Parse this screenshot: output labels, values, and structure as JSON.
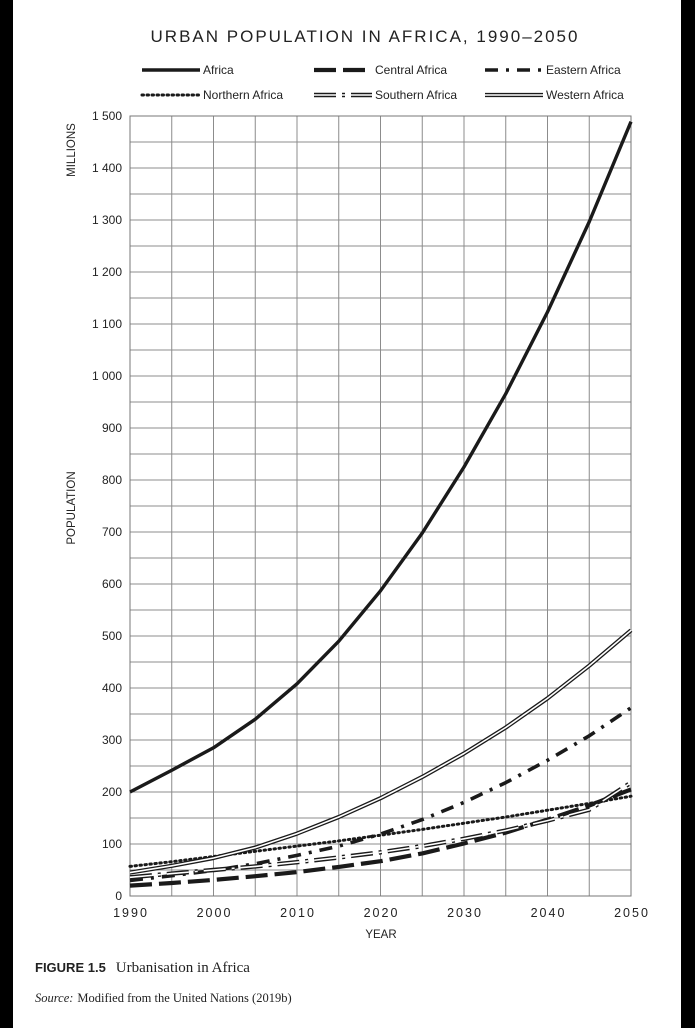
{
  "figure": {
    "label": "FIGURE 1.5",
    "caption": "Urbanisation in Africa",
    "source_label": "Source:",
    "source_text": "Modified from the United Nations (2019b)"
  },
  "chart_data": {
    "type": "line",
    "title": "URBAN POPULATION IN AFRICA, 1990–2050",
    "xlabel": "YEAR",
    "ylabel": "POPULATION",
    "yunit": "MILLIONS",
    "xlim": [
      1990,
      2050
    ],
    "ylim": [
      0,
      1500
    ],
    "x_ticks": [
      1990,
      2000,
      2010,
      2020,
      2030,
      2040,
      2050
    ],
    "y_ticks": [
      0,
      100,
      200,
      300,
      400,
      500,
      600,
      700,
      800,
      900,
      1000,
      1100,
      1200,
      1300,
      1400,
      1500
    ],
    "y_tick_labels": [
      "0",
      "100",
      "200",
      "300",
      "400",
      "500",
      "600",
      "700",
      "800",
      "900",
      "1 000",
      "1 100",
      "1 200",
      "1 300",
      "1 400",
      "1 500"
    ],
    "grid": true,
    "legend_position": "top",
    "x": [
      1990,
      1995,
      2000,
      2005,
      2010,
      2015,
      2020,
      2025,
      2030,
      2035,
      2040,
      2045,
      2050
    ],
    "series": [
      {
        "name": "Africa",
        "style": "solid-thick",
        "color": "#1a1a1a",
        "values": [
          200,
          242,
          285,
          340,
          408,
          490,
          587,
          698,
          825,
          966,
          1123,
          1297,
          1489
        ]
      },
      {
        "name": "Central Africa",
        "style": "long-dash",
        "color": "#1a1a1a",
        "values": [
          20,
          25,
          31,
          38,
          46,
          56,
          67,
          82,
          101,
          122,
          147,
          174,
          205
        ]
      },
      {
        "name": "Eastern Africa",
        "style": "dash-dot",
        "color": "#1a1a1a",
        "values": [
          30,
          39,
          49,
          62,
          78,
          96,
          119,
          147,
          180,
          218,
          261,
          308,
          362
        ]
      },
      {
        "name": "Northern Africa",
        "style": "dotted",
        "color": "#1a1a1a",
        "values": [
          57,
          66,
          76,
          86,
          96,
          106,
          117,
          128,
          140,
          152,
          165,
          178,
          192
        ]
      },
      {
        "name": "Southern Africa",
        "style": "double-dashdot",
        "color": "#1a1a1a",
        "values": [
          36,
          43,
          50,
          57,
          65,
          74,
          84,
          96,
          110,
          126,
          145,
          166,
          218
        ]
      },
      {
        "name": "Western Africa",
        "style": "double",
        "color": "#1a1a1a",
        "values": [
          45,
          58,
          73,
          93,
          120,
          152,
          188,
          229,
          274,
          324,
          380,
          443,
          511
        ]
      }
    ]
  }
}
